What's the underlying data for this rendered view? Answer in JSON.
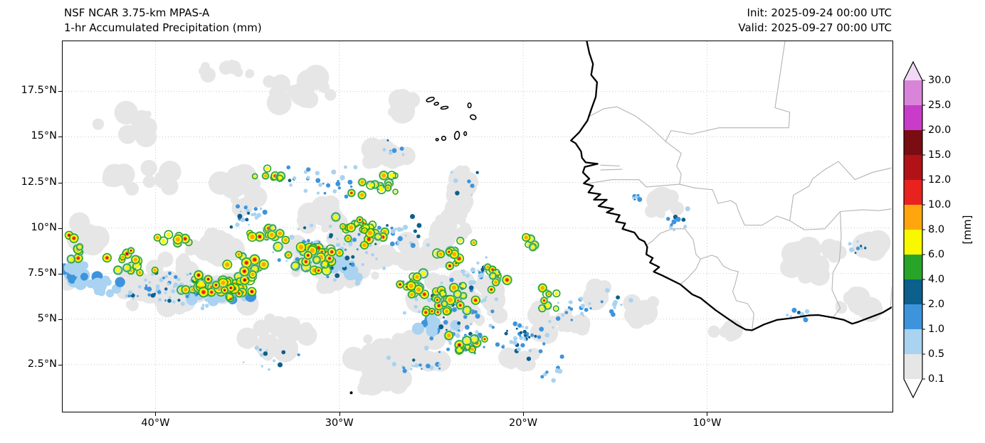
{
  "header": {
    "title_line1": "NSF NCAR 3.75-km MPAS-A",
    "title_line2": "1-hr Accumulated Precipitation (mm)",
    "init_text": "Init: 2025-09-24 00:00 UTC",
    "valid_text": "Valid: 2025-09-27 00:00 UTC"
  },
  "axes": {
    "lon_min": -45.05,
    "lon_max": 0.05,
    "lat_min": -0.05,
    "lat_max": 20.25,
    "x_ticks": [
      {
        "label": "40°W",
        "lon": -40
      },
      {
        "label": "30°W",
        "lon": -30
      },
      {
        "label": "20°W",
        "lon": -20
      },
      {
        "label": "10°W",
        "lon": -10
      }
    ],
    "y_ticks": [
      {
        "label": "2.5°N",
        "lat": 2.5
      },
      {
        "label": "5°N",
        "lat": 5
      },
      {
        "label": "7.5°N",
        "lat": 7.5
      },
      {
        "label": "10°N",
        "lat": 10
      },
      {
        "label": "12.5°N",
        "lat": 12.5
      },
      {
        "label": "15°N",
        "lat": 15
      },
      {
        "label": "17.5°N",
        "lat": 17.5
      }
    ]
  },
  "colorbar": {
    "units_label": "[mm]",
    "tick_labels": [
      "0.1",
      "0.5",
      "1.0",
      "2.0",
      "4.0",
      "6.0",
      "8.0",
      "10.0",
      "12.0",
      "15.0",
      "20.0",
      "25.0",
      "30.0"
    ]
  },
  "chart_data": {
    "type": "heatmap",
    "title": "NSF NCAR 3.75-km MPAS-A",
    "subtitle": "1-hr Accumulated Precipitation (mm)",
    "init_time": "2025-09-24 00:00 UTC",
    "valid_time": "2025-09-27 00:00 UTC",
    "units": "mm",
    "lon_range": [
      -45.05,
      0.05
    ],
    "lat_range": [
      -0.05,
      20.25
    ],
    "levels_mm": [
      0.1,
      0.5,
      1.0,
      2.0,
      4.0,
      6.0,
      8.0,
      10.0,
      12.0,
      15.0,
      20.0,
      25.0,
      30.0
    ],
    "palette": {
      "band_colors": [
        "#e6e6e6",
        "#a9d3f0",
        "#3d94dd",
        "#0d5f8c",
        "#28a428",
        "#f8f800",
        "#ffa60e",
        "#e8221f",
        "#b01217",
        "#7a0d12",
        "#c93bc9",
        "#d884d8"
      ],
      "over": "#f2d9f5",
      "under": "#ffffff"
    },
    "grid_color": "#c9c9c9",
    "coast_color": "#000000",
    "border_color": "#b3b3b3",
    "precip_clusters": {
      "trace": [
        [
          -38.5,
          6.8,
          4.5,
          1.6,
          70
        ],
        [
          -30.0,
          8.3,
          4.0,
          2.2,
          60
        ],
        [
          -23.5,
          5.8,
          3.5,
          2.0,
          50
        ],
        [
          -27.0,
          3.2,
          3.5,
          1.4,
          25
        ],
        [
          -23.4,
          11.7,
          0.8,
          2.2,
          24
        ],
        [
          -32.5,
          17.6,
          2.8,
          1.3,
          16
        ],
        [
          -40.5,
          12.6,
          2.5,
          1.4,
          10
        ],
        [
          -28.0,
          14.2,
          2.0,
          1.0,
          10
        ],
        [
          -4.5,
          7.8,
          1.8,
          1.2,
          12
        ],
        [
          -2.0,
          5.8,
          1.5,
          0.8,
          8
        ],
        [
          -13.3,
          5.4,
          1.2,
          0.8,
          6
        ],
        [
          -44.0,
          9.8,
          1.2,
          1.6,
          10
        ],
        [
          -35.5,
          12.0,
          2.5,
          1.2,
          14
        ],
        [
          -12.3,
          11.2,
          1.5,
          1.0,
          8
        ],
        [
          -41.5,
          16.0,
          2.2,
          1.8,
          8
        ],
        [
          -36.0,
          18.6,
          2.0,
          0.9,
          7
        ],
        [
          -26.5,
          16.8,
          1.5,
          0.8,
          6
        ],
        [
          -27.5,
          1.6,
          2.2,
          0.8,
          8
        ],
        [
          -33.0,
          4.0,
          2.5,
          1.2,
          14
        ],
        [
          -18.0,
          4.8,
          2.0,
          1.3,
          12
        ],
        [
          -44.6,
          7.6,
          0.8,
          1.2,
          12
        ],
        [
          -31.0,
          10.8,
          2.0,
          1.0,
          12
        ],
        [
          -25.5,
          8.5,
          2.0,
          1.5,
          15
        ],
        [
          -21.0,
          2.8,
          2.0,
          1.0,
          8
        ],
        [
          -16.0,
          6.5,
          1.2,
          0.8,
          6
        ],
        [
          -9.0,
          4.2,
          1.5,
          0.6,
          5
        ],
        [
          -0.8,
          9.0,
          0.9,
          0.7,
          6
        ],
        [
          -2.8,
          8.8,
          1.0,
          0.6,
          6
        ],
        [
          -24.0,
          9.8,
          1.5,
          1.5,
          12
        ],
        [
          -36.5,
          9.0,
          2.0,
          1.2,
          15
        ]
      ],
      "blue_patches": [
        [
          -44.3,
          7.5,
          1.0,
          0.9,
          26
        ],
        [
          -43.0,
          6.8,
          1.2,
          0.7,
          14
        ],
        [
          -36.8,
          6.3,
          2.5,
          0.8,
          18
        ],
        [
          -30.0,
          8.0,
          2.0,
          1.0,
          10
        ],
        [
          -25.0,
          4.6,
          1.6,
          0.9,
          10
        ]
      ],
      "blue_speckles": [
        [
          -38.5,
          6.6,
          4.2,
          1.4,
          90
        ],
        [
          -30.5,
          8.6,
          3.5,
          2.0,
          90
        ],
        [
          -24.0,
          5.8,
          3.2,
          1.8,
          70
        ],
        [
          -20.0,
          4.0,
          2.5,
          1.5,
          45
        ],
        [
          -17.3,
          5.6,
          1.4,
          1.0,
          18
        ],
        [
          -30.5,
          12.5,
          3.0,
          1.4,
          30
        ],
        [
          -25.8,
          2.6,
          2.0,
          0.9,
          18
        ],
        [
          -11.6,
          10.4,
          1.0,
          0.8,
          10
        ],
        [
          -1.6,
          8.8,
          0.9,
          0.7,
          9
        ],
        [
          -4.9,
          5.2,
          1.4,
          0.4,
          8
        ],
        [
          -35.0,
          10.6,
          2.0,
          1.1,
          22
        ],
        [
          -26.8,
          9.8,
          2.0,
          1.4,
          25
        ],
        [
          -14.0,
          11.6,
          0.8,
          0.6,
          7
        ],
        [
          -22.5,
          7.5,
          1.5,
          1.2,
          20
        ],
        [
          -27.0,
          14.3,
          1.5,
          0.7,
          8
        ],
        [
          -33.5,
          2.8,
          2.0,
          0.9,
          12
        ],
        [
          -23.0,
          12.4,
          1.2,
          1.0,
          8
        ],
        [
          -18.8,
          2.2,
          1.5,
          0.8,
          8
        ],
        [
          -23.5,
          4.0,
          2.5,
          1.3,
          40
        ],
        [
          -15.0,
          5.8,
          1.3,
          0.9,
          10
        ]
      ],
      "cells": [
        [
          -36.3,
          6.8,
          2.8,
          0.9,
          48,
          0.9
        ],
        [
          -31.2,
          8.4,
          2.2,
          1.4,
          36,
          0.7
        ],
        [
          -28.6,
          9.9,
          1.8,
          1.1,
          22,
          0.5
        ],
        [
          -24.2,
          6.0,
          2.3,
          1.4,
          26,
          0.65
        ],
        [
          -21.6,
          7.4,
          1.2,
          0.9,
          10,
          0.5
        ],
        [
          -33.8,
          9.6,
          1.8,
          0.9,
          14,
          0.45
        ],
        [
          -41.3,
          8.1,
          1.8,
          1.0,
          14,
          0.55
        ],
        [
          -23.2,
          3.6,
          1.8,
          0.9,
          10,
          0.45
        ],
        [
          -27.6,
          12.4,
          2.4,
          1.0,
          14,
          0.25
        ],
        [
          -18.6,
          6.2,
          1.2,
          1.2,
          8,
          0.4
        ],
        [
          -44.3,
          8.9,
          0.8,
          1.2,
          8,
          0.4
        ],
        [
          -33.6,
          12.9,
          1.5,
          0.7,
          8,
          0.25
        ],
        [
          -23.8,
          8.7,
          1.5,
          1.0,
          12,
          0.6
        ],
        [
          -19.8,
          9.0,
          1.0,
          0.8,
          5,
          0.3
        ],
        [
          -38.9,
          9.3,
          1.2,
          0.8,
          8,
          0.45
        ],
        [
          -26.0,
          7.0,
          1.5,
          1.0,
          14,
          0.6
        ],
        [
          -34.9,
          7.9,
          1.5,
          0.9,
          16,
          0.7
        ]
      ]
    },
    "coastline": [
      [
        -16.55,
        20.3
      ],
      [
        -16.4,
        19.6
      ],
      [
        -16.2,
        19.0
      ],
      [
        -16.3,
        18.4
      ],
      [
        -15.98,
        18.0
      ],
      [
        -16.05,
        17.2
      ],
      [
        -16.3,
        16.5
      ],
      [
        -16.5,
        15.9
      ],
      [
        -16.95,
        15.25
      ],
      [
        -17.4,
        14.8
      ],
      [
        -17.15,
        14.65
      ],
      [
        -16.85,
        14.2
      ],
      [
        -16.8,
        13.85
      ],
      [
        -16.6,
        13.6
      ],
      [
        -15.95,
        13.52
      ],
      [
        -16.65,
        13.35
      ],
      [
        -16.75,
        13.05
      ],
      [
        -16.4,
        12.7
      ],
      [
        -16.7,
        12.45
      ],
      [
        -16.2,
        12.3
      ],
      [
        -16.45,
        11.95
      ],
      [
        -15.8,
        11.85
      ],
      [
        -16.15,
        11.55
      ],
      [
        -15.45,
        11.55
      ],
      [
        -15.9,
        11.2
      ],
      [
        -15.1,
        11.05
      ],
      [
        -15.45,
        10.85
      ],
      [
        -14.75,
        10.7
      ],
      [
        -14.95,
        10.35
      ],
      [
        -14.45,
        10.25
      ],
      [
        -14.6,
        9.95
      ],
      [
        -13.95,
        9.75
      ],
      [
        -13.7,
        9.4
      ],
      [
        -13.4,
        9.25
      ],
      [
        -13.25,
        8.95
      ],
      [
        -13.3,
        8.55
      ],
      [
        -12.95,
        8.35
      ],
      [
        -13.1,
        8.1
      ],
      [
        -12.6,
        7.85
      ],
      [
        -12.9,
        7.6
      ],
      [
        -12.45,
        7.4
      ],
      [
        -11.95,
        7.15
      ],
      [
        -11.45,
        6.9
      ],
      [
        -10.8,
        6.35
      ],
      [
        -10.35,
        6.15
      ],
      [
        -9.55,
        5.5
      ],
      [
        -9.05,
        5.15
      ],
      [
        -8.4,
        4.7
      ],
      [
        -7.9,
        4.42
      ],
      [
        -7.55,
        4.38
      ],
      [
        -6.9,
        4.7
      ],
      [
        -6.2,
        4.95
      ],
      [
        -5.4,
        5.05
      ],
      [
        -4.45,
        5.2
      ],
      [
        -3.95,
        5.22
      ],
      [
        -3.15,
        5.08
      ],
      [
        -2.55,
        4.95
      ],
      [
        -2.1,
        4.74
      ],
      [
        -1.75,
        4.85
      ],
      [
        -1.1,
        5.1
      ],
      [
        -0.45,
        5.35
      ],
      [
        0.05,
        5.65
      ]
    ],
    "country_borders": [
      [
        [
          -16.45,
          16.1
        ],
        [
          -15.6,
          16.55
        ],
        [
          -14.9,
          16.65
        ],
        [
          -13.9,
          16.15
        ],
        [
          -13.1,
          15.55
        ],
        [
          -12.25,
          14.75
        ]
      ],
      [
        [
          -12.25,
          14.75
        ],
        [
          -11.95,
          15.35
        ],
        [
          -10.85,
          15.15
        ],
        [
          -9.35,
          15.5
        ],
        [
          -5.55,
          15.5
        ],
        [
          -5.5,
          16.35
        ],
        [
          -6.3,
          16.6
        ],
        [
          -5.75,
          20.3
        ]
      ],
      [
        [
          -12.25,
          14.75
        ],
        [
          -11.4,
          14.1
        ],
        [
          -11.65,
          13.4
        ],
        [
          -11.4,
          12.95
        ],
        [
          -11.5,
          12.4
        ]
      ],
      [
        [
          -16.7,
          12.4
        ],
        [
          -15.2,
          12.65
        ],
        [
          -13.7,
          12.65
        ],
        [
          -13.3,
          12.25
        ],
        [
          -11.5,
          12.4
        ]
      ],
      [
        [
          -11.5,
          12.4
        ],
        [
          -10.7,
          12.2
        ],
        [
          -9.7,
          12.1
        ],
        [
          -9.4,
          11.35
        ],
        [
          -8.7,
          11.5
        ],
        [
          -8.4,
          11.3
        ],
        [
          -8.3,
          10.95
        ],
        [
          -7.95,
          10.15
        ]
      ],
      [
        [
          -13.3,
          9.05
        ],
        [
          -12.95,
          9.3
        ],
        [
          -12.55,
          9.7
        ],
        [
          -11.9,
          9.95
        ],
        [
          -11.2,
          9.95
        ],
        [
          -10.75,
          9.35
        ],
        [
          -10.6,
          8.55
        ],
        [
          -10.35,
          8.3
        ]
      ],
      [
        [
          -11.45,
          6.9
        ],
        [
          -11.05,
          7.25
        ],
        [
          -10.6,
          7.75
        ],
        [
          -10.35,
          8.3
        ]
      ],
      [
        [
          -10.35,
          8.3
        ],
        [
          -9.75,
          8.5
        ],
        [
          -9.45,
          8.4
        ],
        [
          -9.1,
          7.9
        ],
        [
          -8.7,
          7.7
        ]
      ],
      [
        [
          -8.7,
          7.7
        ],
        [
          -8.3,
          7.6
        ],
        [
          -8.45,
          7.0
        ],
        [
          -8.6,
          6.5
        ],
        [
          -8.4,
          6.0
        ],
        [
          -7.8,
          5.85
        ],
        [
          -7.45,
          5.3
        ],
        [
          -7.55,
          4.38
        ]
      ],
      [
        [
          -7.95,
          10.15
        ],
        [
          -7.0,
          10.15
        ],
        [
          -6.2,
          10.65
        ],
        [
          -5.5,
          10.4
        ],
        [
          -4.7,
          9.9
        ],
        [
          -3.6,
          9.95
        ],
        [
          -2.75,
          10.9
        ]
      ],
      [
        [
          -3.15,
          5.08
        ],
        [
          -2.75,
          5.6
        ],
        [
          -3.2,
          6.6
        ],
        [
          -3.15,
          7.55
        ],
        [
          -2.8,
          8.2
        ],
        [
          -2.7,
          9.5
        ],
        [
          -2.75,
          10.9
        ]
      ],
      [
        [
          -5.5,
          10.4
        ],
        [
          -5.3,
          11.8
        ],
        [
          -4.45,
          12.3
        ],
        [
          -4.25,
          12.7
        ],
        [
          -3.6,
          13.2
        ],
        [
          -2.85,
          13.65
        ],
        [
          -1.95,
          12.65
        ],
        [
          -1.0,
          13.05
        ],
        [
          0.05,
          13.3
        ]
      ],
      [
        [
          -2.75,
          10.9
        ],
        [
          -1.55,
          11.0
        ],
        [
          -0.65,
          10.95
        ],
        [
          0.05,
          11.05
        ]
      ],
      [
        [
          -15.8,
          13.18
        ],
        [
          -14.6,
          13.22
        ]
      ],
      [
        [
          -15.8,
          13.45
        ],
        [
          -14.75,
          13.4
        ]
      ],
      [
        [
          0.0,
          5.72
        ],
        [
          0.05,
          6.8
        ]
      ]
    ],
    "cape_verde_islands": [
      [
        -25.05,
        17.05,
        0.22,
        0.1,
        -20
      ],
      [
        -24.72,
        16.82,
        0.12,
        0.07,
        -15
      ],
      [
        -24.28,
        16.6,
        0.2,
        0.07,
        -10
      ],
      [
        -22.92,
        16.73,
        0.09,
        0.13,
        0
      ],
      [
        -22.72,
        16.08,
        0.16,
        0.12,
        20
      ],
      [
        -23.6,
        15.08,
        0.13,
        0.22,
        10
      ],
      [
        -24.32,
        14.92,
        0.11,
        0.11,
        0
      ],
      [
        -24.68,
        14.85,
        0.07,
        0.05,
        0
      ],
      [
        -23.15,
        15.18,
        0.07,
        0.1,
        0
      ]
    ],
    "islets": [
      [
        -29.35,
        0.95
      ]
    ]
  }
}
